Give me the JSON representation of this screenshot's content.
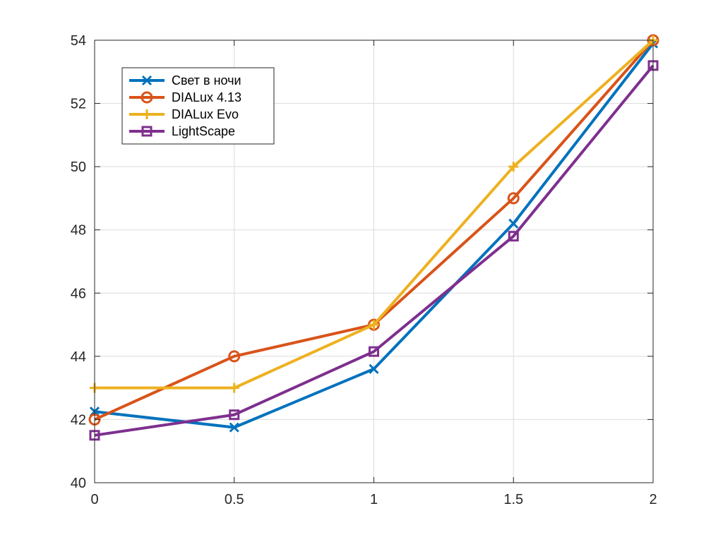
{
  "chart_data": {
    "type": "line",
    "title": "",
    "xlabel": "",
    "ylabel": "",
    "x": [
      0,
      0.5,
      1,
      1.5,
      2
    ],
    "xlim": [
      0,
      2
    ],
    "ylim": [
      40,
      54
    ],
    "xticks": [
      0,
      0.5,
      1,
      1.5,
      2
    ],
    "xtick_labels": [
      "0",
      "0.5",
      "1",
      "1.5",
      "2"
    ],
    "yticks": [
      40,
      42,
      44,
      46,
      48,
      50,
      52,
      54
    ],
    "ytick_labels": [
      "40",
      "42",
      "44",
      "46",
      "48",
      "50",
      "52",
      "54"
    ],
    "grid": true,
    "legend_position": "top-left",
    "series": [
      {
        "name": "Свет в ночи",
        "values": [
          42.25,
          41.75,
          43.6,
          48.2,
          53.9
        ],
        "color": "#0072BD",
        "marker": "x"
      },
      {
        "name": "DIALux 4.13",
        "values": [
          42.0,
          44.0,
          45.0,
          49.0,
          54.0
        ],
        "color": "#D95319",
        "marker": "o"
      },
      {
        "name": "DIALux Evo",
        "values": [
          43.0,
          43.0,
          45.0,
          50.0,
          54.0
        ],
        "color": "#EDB120",
        "marker": "+"
      },
      {
        "name": "LightScape",
        "values": [
          41.5,
          42.15,
          44.15,
          47.8,
          53.2
        ],
        "color": "#7E2F8E",
        "marker": "s"
      }
    ]
  }
}
